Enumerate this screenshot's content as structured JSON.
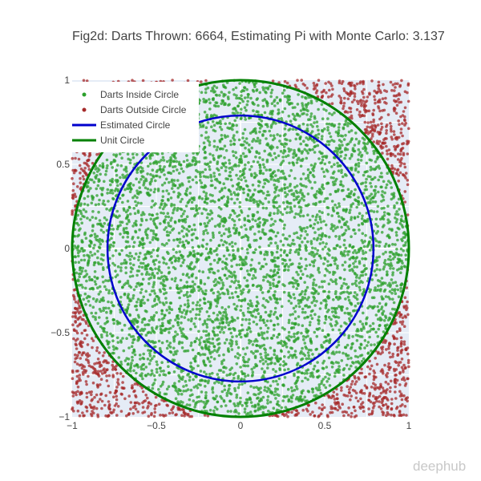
{
  "chart_data": {
    "type": "scatter",
    "title": "Fig2d: Darts Thrown: 6664, Estimating Pi with Monte Carlo: 3.137",
    "xlim": [
      -1,
      1
    ],
    "ylim": [
      -1,
      1
    ],
    "x_ticks": [
      -1,
      -0.5,
      0,
      0.5,
      1
    ],
    "y_ticks": [
      -1,
      -0.5,
      0,
      0.5,
      1
    ],
    "x_tick_labels": [
      "−1",
      "−0.5",
      "0",
      "0.5",
      "1"
    ],
    "y_tick_labels": [
      "−1",
      "−0.5",
      "0",
      "0.5",
      "1"
    ],
    "grid": true,
    "legend_position": "top-left",
    "series": [
      {
        "name": "Darts Inside Circle",
        "kind": "markers",
        "color": "#2ca02c",
        "count_estimate": 5230
      },
      {
        "name": "Darts Outside Circle",
        "kind": "markers",
        "color": "#a52a2a",
        "count_estimate": 1434
      },
      {
        "name": "Estimated Circle",
        "kind": "line",
        "color": "#0000cd",
        "radius": 0.79
      },
      {
        "name": "Unit Circle",
        "kind": "line",
        "color": "#008000",
        "radius": 1
      }
    ],
    "total_darts": 6664,
    "pi_estimate": 3.137
  },
  "watermark": "deephub",
  "colors": {
    "plot_background": "#e5ecf6",
    "gridline": "#ffffff"
  }
}
